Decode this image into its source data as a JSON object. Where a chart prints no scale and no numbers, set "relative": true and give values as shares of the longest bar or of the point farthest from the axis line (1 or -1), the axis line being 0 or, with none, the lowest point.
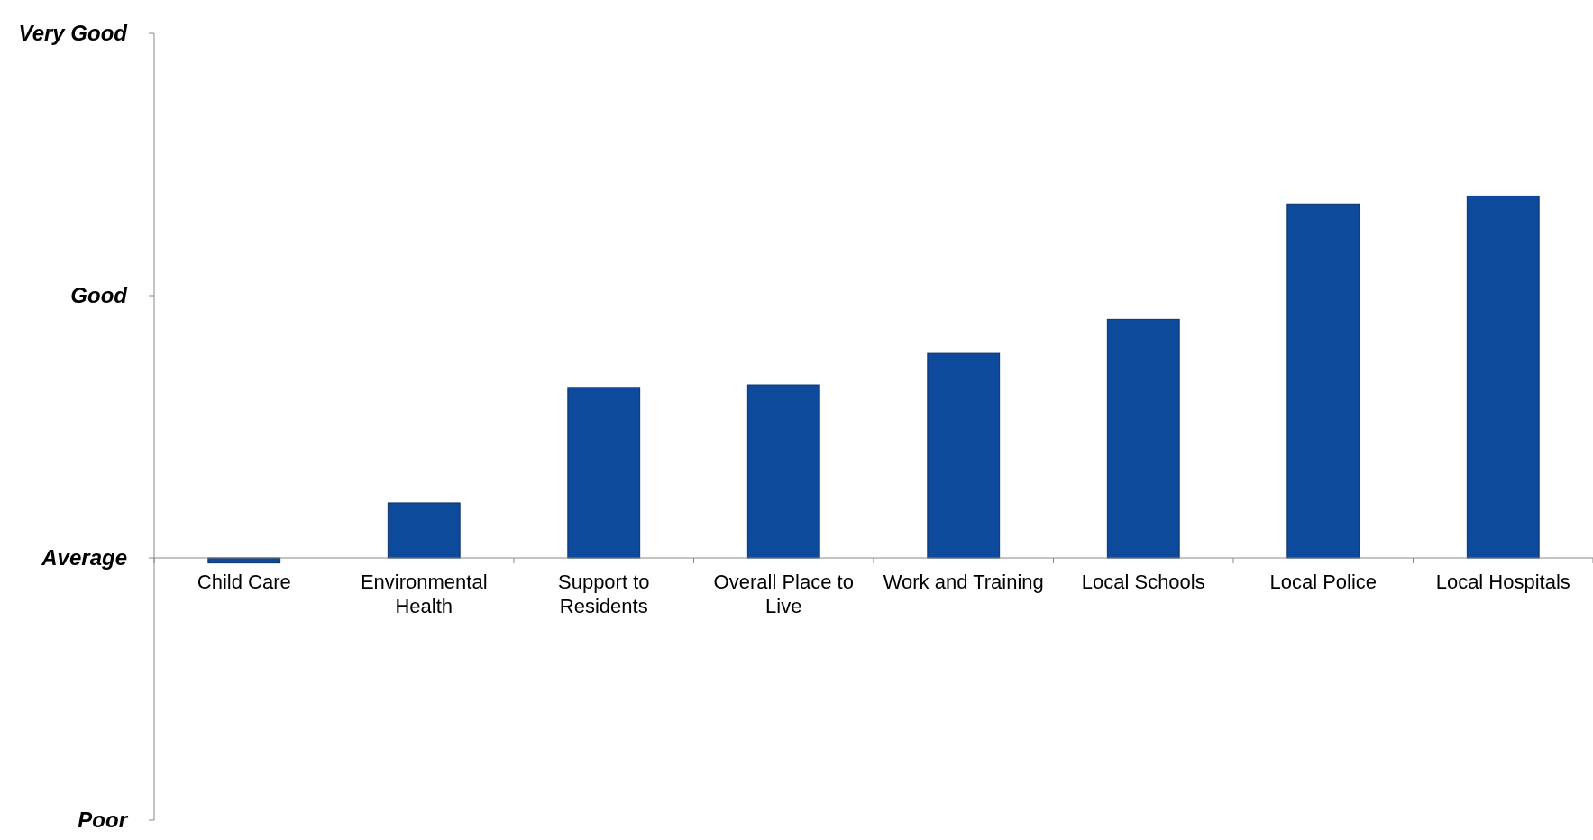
{
  "chart_data": {
    "type": "bar",
    "categories": [
      "Child Care",
      "Environmental Health",
      "Support to Residents",
      "Overall Place to Live",
      "Work and Training",
      "Local Schools",
      "Local Police",
      "Local Hospitals"
    ],
    "values": [
      -0.014,
      0.152,
      0.471,
      0.478,
      0.565,
      0.659,
      0.978,
      1
    ],
    "color": "#0d4a9b",
    "relative": true,
    "annotations": [
      "Very Good",
      "Good",
      "Average",
      "Poor"
    ]
  }
}
